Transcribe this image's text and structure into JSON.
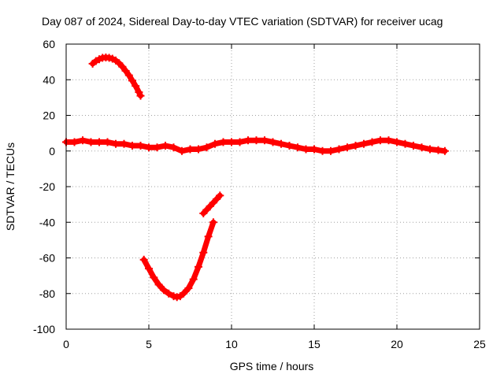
{
  "chart_data": {
    "type": "line",
    "title": "Day 087 of 2024, Sidereal Day-to-day VTEC variation (SDTVAR) for receiver ucag",
    "xlabel": "GPS time / hours",
    "ylabel": "SDTVAR / TECUs",
    "xlim": [
      0,
      25
    ],
    "ylim": [
      -100,
      60
    ],
    "xticks": [
      0,
      5,
      10,
      15,
      20,
      25
    ],
    "yticks": [
      -100,
      -80,
      -60,
      -40,
      -20,
      0,
      20,
      40,
      60
    ],
    "grid": true,
    "legend": "none",
    "series_color": "#ff0000",
    "series": [
      {
        "name": "main-track",
        "x": [
          0.0,
          0.5,
          1.0,
          1.5,
          2.0,
          2.5,
          3.0,
          3.5,
          4.0,
          4.5,
          5.0,
          5.5,
          6.0,
          6.5,
          7.0,
          7.5,
          8.0,
          8.5,
          9.0,
          9.5,
          10.0,
          10.5,
          11.0,
          11.5,
          12.0,
          12.5,
          13.0,
          13.5,
          14.0,
          14.5,
          15.0,
          15.5,
          16.0,
          16.5,
          17.0,
          17.5,
          18.0,
          18.5,
          19.0,
          19.5,
          20.0,
          20.5,
          21.0,
          21.5,
          22.0,
          22.5,
          22.9
        ],
        "y": [
          5,
          5,
          6,
          5,
          5,
          5,
          4,
          4,
          3,
          3,
          2,
          2,
          3,
          2,
          0,
          1,
          1,
          2,
          4,
          5,
          5,
          5,
          6,
          6,
          6,
          5,
          4,
          3,
          2,
          1,
          1,
          0,
          0,
          1,
          2,
          3,
          4,
          5,
          6,
          6,
          5,
          4,
          3,
          2,
          1,
          0.5,
          0
        ]
      },
      {
        "name": "arc-upper",
        "x": [
          1.6,
          1.8,
          2.0,
          2.2,
          2.4,
          2.6,
          2.8,
          3.0,
          3.2,
          3.4,
          3.6,
          3.8,
          4.0,
          4.2,
          4.4,
          4.5
        ],
        "y": [
          49,
          50.5,
          51.5,
          52.3,
          52.5,
          52.3,
          51.8,
          50.8,
          49.3,
          47.3,
          45,
          42.5,
          39.5,
          36.5,
          33,
          31
        ]
      },
      {
        "name": "arc-lower",
        "x": [
          4.7,
          5.0,
          5.3,
          5.6,
          5.9,
          6.2,
          6.5,
          6.7,
          6.9,
          7.1,
          7.4,
          7.7,
          8.0,
          8.3,
          8.6,
          8.9
        ],
        "y": [
          -61,
          -66,
          -71,
          -75,
          -78,
          -80,
          -81.5,
          -82,
          -81.5,
          -80,
          -77,
          -72,
          -65,
          -57,
          -48,
          -40
        ]
      },
      {
        "name": "short-segment",
        "x": [
          8.3,
          8.5,
          8.7,
          8.9,
          9.1,
          9.3
        ],
        "y": [
          -35,
          -33,
          -31,
          -29,
          -27,
          -25
        ]
      }
    ]
  }
}
